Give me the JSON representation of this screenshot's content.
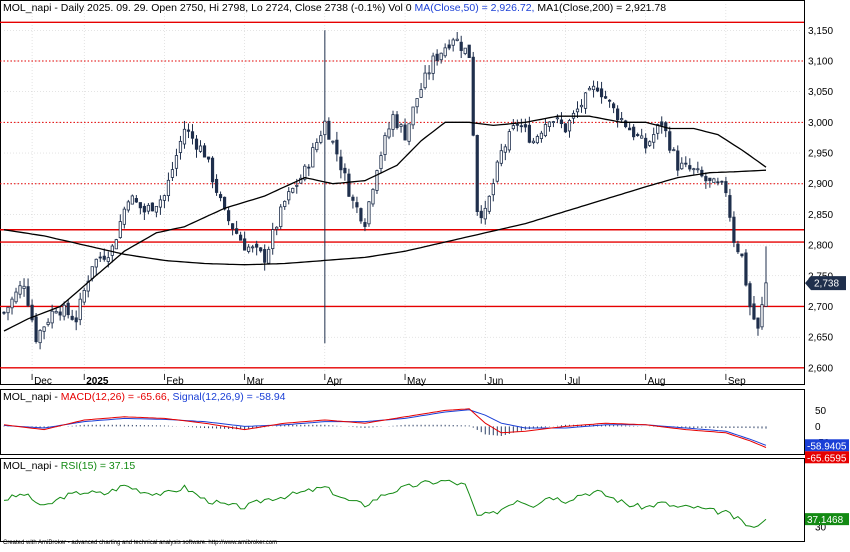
{
  "colors": {
    "up": "#ffffff",
    "down": "#1f2f4c",
    "candle_outline": "#1f2f4c",
    "ma50": "#000000",
    "ma200": "#000000",
    "hline": "#e60000",
    "hline_dotted": "#e60000",
    "macd": "#e60000",
    "signal": "#1a3fd6",
    "hist": "#2b3f65",
    "rsi": "#138a13",
    "grid": "#c8c8c8",
    "frame": "#000000"
  },
  "header": {
    "main": {
      "prefix": "MOL_napi - Daily 2025. 09. 29. Open 2750, Hi 2798, Lo 2724, Close 2738 (-0.1%) Vol 0",
      "ma50": "MA(Close,50) = 2,926.72,",
      "ma200": "MA1(Close,200) = 2,921.78"
    },
    "macd": {
      "prefix": "MOL_napi -",
      "macd": "MACD(12,26) = -65.66,",
      "signal": "Signal(12,26,9) = -58.94"
    },
    "rsi": {
      "prefix": "MOL_napi -",
      "rsi": "RSI(15) = 37.15"
    }
  },
  "footer": "Created with AmiBroker - advanced charting and technical analysis software. http://www.amibroker.com",
  "chart_data": [
    {
      "type": "candlestick",
      "ylim": [
        2590,
        3170
      ],
      "y_ticks": [
        2600,
        2650,
        2700,
        2750,
        2800,
        2850,
        2900,
        2950,
        3000,
        3050,
        3100,
        3150
      ],
      "y_tick_labels": [
        "2,600",
        "2,650",
        "2,700",
        "2,750",
        "2,800",
        "2,850",
        "2,900",
        "2,950",
        "3,000",
        "3,050",
        "3,100",
        "3,150"
      ],
      "x_labels": [
        {
          "label": "Dec",
          "index": 7
        },
        {
          "label": "2025",
          "index": 20
        },
        {
          "label": "Feb",
          "index": 40
        },
        {
          "label": "Mar",
          "index": 60
        },
        {
          "label": "Apr",
          "index": 80
        },
        {
          "label": "May",
          "index": 100
        },
        {
          "label": "Jun",
          "index": 120
        },
        {
          "label": "Jul",
          "index": 140
        },
        {
          "label": "Aug",
          "index": 160
        },
        {
          "label": "Sep",
          "index": 180
        }
      ],
      "last_close_label": "2,738",
      "ohlc_anchors": [
        [
          0,
          2690
        ],
        [
          5,
          2740
        ],
        [
          8,
          2650
        ],
        [
          13,
          2700
        ],
        [
          18,
          2680
        ],
        [
          22,
          2770
        ],
        [
          27,
          2795
        ],
        [
          31,
          2880
        ],
        [
          35,
          2855
        ],
        [
          40,
          2880
        ],
        [
          45,
          2990
        ],
        [
          50,
          2950
        ],
        [
          55,
          2850
        ],
        [
          60,
          2800
        ],
        [
          65,
          2780
        ],
        [
          70,
          2870
        ],
        [
          75,
          2920
        ],
        [
          80,
          3000
        ],
        [
          83,
          2950
        ],
        [
          87,
          2870
        ],
        [
          90,
          2840
        ],
        [
          93,
          2930
        ],
        [
          97,
          3010
        ],
        [
          100,
          2980
        ],
        [
          103,
          3040
        ],
        [
          107,
          3100
        ],
        [
          112,
          3140
        ],
        [
          116,
          3110
        ],
        [
          118,
          2860
        ],
        [
          120,
          2850
        ],
        [
          124,
          2950
        ],
        [
          128,
          3000
        ],
        [
          132,
          2970
        ],
        [
          136,
          3010
        ],
        [
          140,
          2990
        ],
        [
          144,
          3030
        ],
        [
          148,
          3060
        ],
        [
          152,
          3020
        ],
        [
          156,
          2990
        ],
        [
          160,
          2960
        ],
        [
          164,
          3000
        ],
        [
          168,
          2930
        ],
        [
          172,
          2920
        ],
        [
          176,
          2900
        ],
        [
          180,
          2890
        ],
        [
          182,
          2810
        ],
        [
          184,
          2780
        ],
        [
          186,
          2700
        ],
        [
          188,
          2660
        ],
        [
          190,
          2738
        ]
      ],
      "ma50_anchors": [
        [
          0,
          2660
        ],
        [
          6,
          2680
        ],
        [
          14,
          2700
        ],
        [
          22,
          2745
        ],
        [
          30,
          2790
        ],
        [
          38,
          2820
        ],
        [
          45,
          2830
        ],
        [
          55,
          2860
        ],
        [
          65,
          2880
        ],
        [
          75,
          2910
        ],
        [
          82,
          2900
        ],
        [
          90,
          2905
        ],
        [
          98,
          2930
        ],
        [
          104,
          2970
        ],
        [
          110,
          3000
        ],
        [
          116,
          3000
        ],
        [
          122,
          2995
        ],
        [
          130,
          3000
        ],
        [
          138,
          3010
        ],
        [
          146,
          3010
        ],
        [
          154,
          3000
        ],
        [
          160,
          3000
        ],
        [
          166,
          2990
        ],
        [
          172,
          2990
        ],
        [
          178,
          2980
        ],
        [
          184,
          2955
        ],
        [
          190,
          2927
        ]
      ],
      "ma200_anchors": [
        [
          0,
          2825
        ],
        [
          10,
          2815
        ],
        [
          20,
          2800
        ],
        [
          30,
          2785
        ],
        [
          40,
          2775
        ],
        [
          50,
          2770
        ],
        [
          60,
          2768
        ],
        [
          70,
          2770
        ],
        [
          80,
          2775
        ],
        [
          90,
          2780
        ],
        [
          100,
          2790
        ],
        [
          110,
          2805
        ],
        [
          120,
          2820
        ],
        [
          130,
          2835
        ],
        [
          140,
          2855
        ],
        [
          150,
          2875
        ],
        [
          160,
          2895
        ],
        [
          168,
          2910
        ],
        [
          176,
          2918
        ],
        [
          184,
          2920
        ],
        [
          190,
          2922
        ]
      ],
      "horizontal_lines": [
        {
          "value": 3163,
          "style": "solid"
        },
        {
          "value": 3100,
          "style": "dotted"
        },
        {
          "value": 3000,
          "style": "dotted"
        },
        {
          "value": 2900,
          "style": "dotted"
        },
        {
          "value": 2825,
          "style": "solid"
        },
        {
          "value": 2805,
          "style": "solid"
        },
        {
          "value": 2700,
          "style": "solid"
        },
        {
          "value": 2600,
          "style": "solid"
        }
      ]
    },
    {
      "type": "line",
      "title": "MACD(12,26)",
      "ylim": [
        -80,
        70
      ],
      "y_ticks": [
        50,
        0,
        -50
      ],
      "y_tick_labels": [
        "50",
        "0",
        "-50"
      ],
      "last_macd_label": "-65.6595",
      "last_signal_label": "-58.9405",
      "macd_anchors": [
        [
          0,
          5
        ],
        [
          10,
          -10
        ],
        [
          20,
          20
        ],
        [
          30,
          30
        ],
        [
          40,
          25
        ],
        [
          50,
          10
        ],
        [
          60,
          -10
        ],
        [
          70,
          10
        ],
        [
          80,
          20
        ],
        [
          90,
          10
        ],
        [
          100,
          30
        ],
        [
          110,
          50
        ],
        [
          116,
          55
        ],
        [
          120,
          10
        ],
        [
          124,
          -20
        ],
        [
          130,
          -15
        ],
        [
          140,
          0
        ],
        [
          150,
          10
        ],
        [
          160,
          5
        ],
        [
          170,
          -10
        ],
        [
          180,
          -20
        ],
        [
          186,
          -45
        ],
        [
          190,
          -66
        ]
      ],
      "signal_anchors": [
        [
          0,
          3
        ],
        [
          10,
          -5
        ],
        [
          20,
          15
        ],
        [
          30,
          25
        ],
        [
          40,
          22
        ],
        [
          50,
          15
        ],
        [
          60,
          0
        ],
        [
          70,
          5
        ],
        [
          80,
          15
        ],
        [
          90,
          15
        ],
        [
          100,
          25
        ],
        [
          110,
          45
        ],
        [
          116,
          52
        ],
        [
          120,
          35
        ],
        [
          124,
          10
        ],
        [
          130,
          -5
        ],
        [
          140,
          -5
        ],
        [
          150,
          5
        ],
        [
          160,
          5
        ],
        [
          170,
          -5
        ],
        [
          180,
          -15
        ],
        [
          186,
          -40
        ],
        [
          190,
          -59
        ]
      ]
    },
    {
      "type": "line",
      "title": "RSI(15)",
      "ylim": [
        20,
        80
      ],
      "y_ticks": [
        30
      ],
      "y_tick_labels": [
        "30"
      ],
      "last_rsi_label": "37.1468",
      "rsi_anchors": [
        [
          0,
          55
        ],
        [
          5,
          60
        ],
        [
          10,
          48
        ],
        [
          15,
          58
        ],
        [
          20,
          62
        ],
        [
          25,
          60
        ],
        [
          30,
          68
        ],
        [
          35,
          62
        ],
        [
          40,
          60
        ],
        [
          45,
          66
        ],
        [
          50,
          55
        ],
        [
          55,
          50
        ],
        [
          60,
          48
        ],
        [
          65,
          55
        ],
        [
          70,
          58
        ],
        [
          75,
          62
        ],
        [
          80,
          66
        ],
        [
          85,
          55
        ],
        [
          90,
          50
        ],
        [
          95,
          60
        ],
        [
          100,
          66
        ],
        [
          105,
          70
        ],
        [
          110,
          72
        ],
        [
          115,
          68
        ],
        [
          118,
          40
        ],
        [
          122,
          42
        ],
        [
          128,
          55
        ],
        [
          132,
          50
        ],
        [
          136,
          58
        ],
        [
          140,
          54
        ],
        [
          144,
          60
        ],
        [
          148,
          62
        ],
        [
          152,
          56
        ],
        [
          156,
          50
        ],
        [
          160,
          48
        ],
        [
          164,
          52
        ],
        [
          168,
          48
        ],
        [
          172,
          48
        ],
        [
          176,
          45
        ],
        [
          180,
          43
        ],
        [
          184,
          35
        ],
        [
          187,
          28
        ],
        [
          190,
          37
        ]
      ]
    }
  ]
}
